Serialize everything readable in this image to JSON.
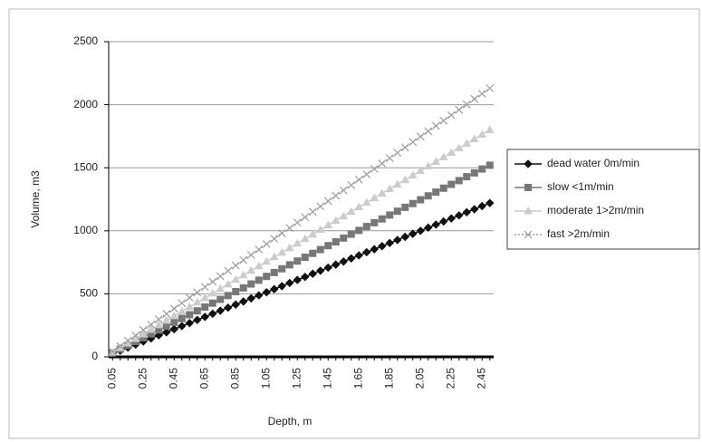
{
  "chart_data": {
    "type": "line",
    "x_label": "Depth,  m",
    "y_label": "Volume,  m3",
    "categories": [
      "0.05",
      null,
      null,
      null,
      "0.25",
      null,
      null,
      null,
      "0.45",
      null,
      null,
      null,
      "0.65",
      null,
      null,
      null,
      "0.85",
      null,
      null,
      null,
      "1.05",
      null,
      null,
      null,
      "1.25",
      null,
      null,
      null,
      "1.45",
      null,
      null,
      null,
      "1.65",
      null,
      null,
      null,
      "1.85",
      null,
      null,
      null,
      "2.05",
      null,
      null,
      null,
      "2.25",
      null,
      null,
      null,
      "2.45",
      null
    ],
    "series": [
      {
        "name": "dead water 0m/min",
        "color": "#111111",
        "marker": "diamond",
        "dash": false,
        "values": [
          24,
          49,
          73,
          98,
          122,
          146,
          171,
          195,
          220,
          244,
          268,
          293,
          317,
          342,
          366,
          390,
          415,
          439,
          464,
          488,
          512,
          537,
          561,
          586,
          610,
          634,
          659,
          683,
          708,
          732,
          756,
          781,
          805,
          830,
          854,
          878,
          903,
          927,
          952,
          976,
          1000,
          1025,
          1049,
          1074,
          1098,
          1122,
          1147,
          1171,
          1196,
          1220
        ]
      },
      {
        "name": "slow <1m/min",
        "color": "#777777",
        "marker": "square",
        "dash": false,
        "values": [
          30,
          61,
          91,
          122,
          152,
          182,
          213,
          243,
          274,
          304,
          334,
          365,
          395,
          426,
          456,
          486,
          517,
          547,
          578,
          608,
          638,
          669,
          699,
          730,
          760,
          790,
          821,
          851,
          882,
          912,
          942,
          973,
          1003,
          1034,
          1064,
          1094,
          1125,
          1155,
          1186,
          1216,
          1246,
          1277,
          1307,
          1338,
          1368,
          1398,
          1429,
          1459,
          1490,
          1520
        ]
      },
      {
        "name": "moderate 1>2m/min",
        "color": "#cccccc",
        "marker": "triangle",
        "dash": false,
        "values": [
          36,
          72,
          108,
          144,
          180,
          216,
          252,
          288,
          324,
          360,
          396,
          432,
          468,
          504,
          540,
          576,
          612,
          648,
          684,
          720,
          756,
          792,
          828,
          864,
          900,
          936,
          972,
          1008,
          1044,
          1080,
          1116,
          1152,
          1188,
          1224,
          1260,
          1296,
          1332,
          1368,
          1404,
          1440,
          1476,
          1512,
          1548,
          1584,
          1620,
          1656,
          1692,
          1728,
          1764,
          1800
        ]
      },
      {
        "name": "fast >2m/min",
        "color": "#a0a0a0",
        "marker": "x",
        "dash": true,
        "values": [
          43,
          85,
          128,
          170,
          213,
          256,
          298,
          341,
          383,
          426,
          469,
          511,
          554,
          596,
          639,
          682,
          724,
          767,
          809,
          852,
          895,
          937,
          980,
          1022,
          1065,
          1108,
          1150,
          1193,
          1235,
          1278,
          1321,
          1363,
          1406,
          1448,
          1491,
          1534,
          1576,
          1619,
          1661,
          1704,
          1747,
          1789,
          1832,
          1874,
          1917,
          1960,
          2002,
          2045,
          2087,
          2130
        ]
      }
    ],
    "ylim": [
      0,
      2500
    ],
    "yticks": [
      0,
      500,
      1000,
      1500,
      2000,
      2500
    ],
    "grid": true,
    "legend": "right"
  }
}
